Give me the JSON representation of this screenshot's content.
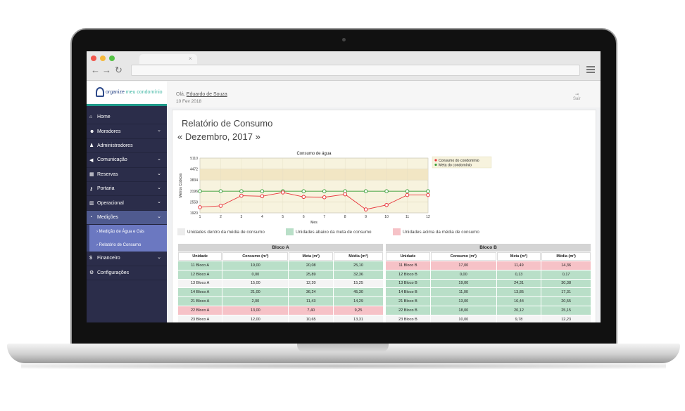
{
  "browser": {
    "tab_close": "×",
    "back": "←",
    "forward": "→",
    "reload": "↻"
  },
  "app": {
    "logo_bold": "organize",
    "logo_light": " meu condomínio"
  },
  "header": {
    "greeting_prefix": "Olá,",
    "user_name": "Eduardo de Souza",
    "date": "10 Fev 2018",
    "logout_label": "Sair"
  },
  "sidebar": {
    "items": [
      {
        "label": "Home",
        "icon": "home-icon",
        "glyph": "⌂",
        "chevron": false
      },
      {
        "label": "Moradores",
        "icon": "users-icon",
        "glyph": "☻",
        "chevron": true
      },
      {
        "label": "Administradores",
        "icon": "user-icon",
        "glyph": "♟",
        "chevron": false
      },
      {
        "label": "Comunicação",
        "icon": "megaphone-icon",
        "glyph": "◀",
        "chevron": true
      },
      {
        "label": "Reservas",
        "icon": "calendar-icon",
        "glyph": "▦",
        "chevron": true
      },
      {
        "label": "Portaria",
        "icon": "key-icon",
        "glyph": "⚷",
        "chevron": true
      },
      {
        "label": "Operacional",
        "icon": "chart-icon",
        "glyph": "▥",
        "chevron": true
      },
      {
        "label": "Medições",
        "icon": "gauge-icon",
        "glyph": "◔",
        "chevron": true,
        "active": true
      }
    ],
    "subitems": [
      {
        "label": "› Medição de Água e Gás"
      },
      {
        "label": "› Relatório de Consumo"
      }
    ],
    "items_after": [
      {
        "label": "Financeiro",
        "icon": "dollar-icon",
        "glyph": "$",
        "chevron": true
      },
      {
        "label": "Configurações",
        "icon": "gears-icon",
        "glyph": "⚙",
        "chevron": false
      }
    ]
  },
  "report": {
    "title": "Relatório de Consumo",
    "period": "« Dezembro, 2017 »"
  },
  "chart_data": {
    "type": "line",
    "title": "Consumo de água",
    "xlabel": "Mes",
    "ylabel": "Metros Cúbicos",
    "x": [
      1,
      2,
      3,
      4,
      5,
      6,
      7,
      8,
      9,
      10,
      11,
      12
    ],
    "yticks": [
      1920,
      2558,
      3196,
      3834,
      4472,
      5110
    ],
    "ylim": [
      1920,
      5110
    ],
    "grid": true,
    "legend_position": "top-right",
    "series": [
      {
        "name": "Consumo do condomínio",
        "color": "#e8333a",
        "values": [
          2250,
          2330,
          2920,
          2890,
          3110,
          2850,
          2830,
          3000,
          2120,
          2380,
          2960,
          2960
        ]
      },
      {
        "name": "Meta do condomínio",
        "color": "#3ca03c",
        "values": [
          3180,
          3180,
          3180,
          3180,
          3180,
          3180,
          3180,
          3180,
          3180,
          3180,
          3180,
          3180
        ]
      }
    ]
  },
  "legend": {
    "inside": "Unidades dentro da média de consumo",
    "below": "Unidades abaixo da meta de consumo",
    "above": "Unidades acima da média de consumo",
    "colors": {
      "inside": "#ececec",
      "below": "#b9dfc8",
      "above": "#f6c2c7"
    }
  },
  "columns": [
    "Unidade",
    "Consumo (m³)",
    "Meta (m³)",
    "Média (m³)"
  ],
  "bloco_a": {
    "title": "Bloco A",
    "rows": [
      {
        "status": "g",
        "cells": [
          "11 Bloco A",
          "19,00",
          "20,08",
          "25,10"
        ]
      },
      {
        "status": "g",
        "cells": [
          "12 Bloco A",
          "0,00",
          "25,89",
          "32,36"
        ]
      },
      {
        "status": "w",
        "cells": [
          "13 Bloco A",
          "15,00",
          "12,20",
          "15,25"
        ]
      },
      {
        "status": "g",
        "cells": [
          "14 Bloco A",
          "21,00",
          "36,24",
          "45,30"
        ]
      },
      {
        "status": "g",
        "cells": [
          "21 Bloco A",
          "2,00",
          "11,43",
          "14,29"
        ]
      },
      {
        "status": "r",
        "cells": [
          "22 Bloco A",
          "13,00",
          "7,40",
          "9,25"
        ]
      },
      {
        "status": "w",
        "cells": [
          "23 Bloco A",
          "12,00",
          "10,65",
          "13,31"
        ]
      }
    ]
  },
  "bloco_b": {
    "title": "Bloco B",
    "rows": [
      {
        "status": "r",
        "cells": [
          "11 Bloco B",
          "17,00",
          "11,49",
          "14,36"
        ]
      },
      {
        "status": "g",
        "cells": [
          "12 Bloco B",
          "0,00",
          "0,13",
          "0,17"
        ]
      },
      {
        "status": "g",
        "cells": [
          "13 Bloco B",
          "19,00",
          "24,31",
          "30,38"
        ]
      },
      {
        "status": "g",
        "cells": [
          "14 Bloco B",
          "11,00",
          "13,85",
          "17,31"
        ]
      },
      {
        "status": "g",
        "cells": [
          "21 Bloco B",
          "13,00",
          "16,44",
          "20,55"
        ]
      },
      {
        "status": "g",
        "cells": [
          "22 Bloco B",
          "18,00",
          "20,12",
          "25,15"
        ]
      },
      {
        "status": "w",
        "cells": [
          "23 Bloco B",
          "10,00",
          "9,78",
          "12,23"
        ]
      }
    ]
  }
}
